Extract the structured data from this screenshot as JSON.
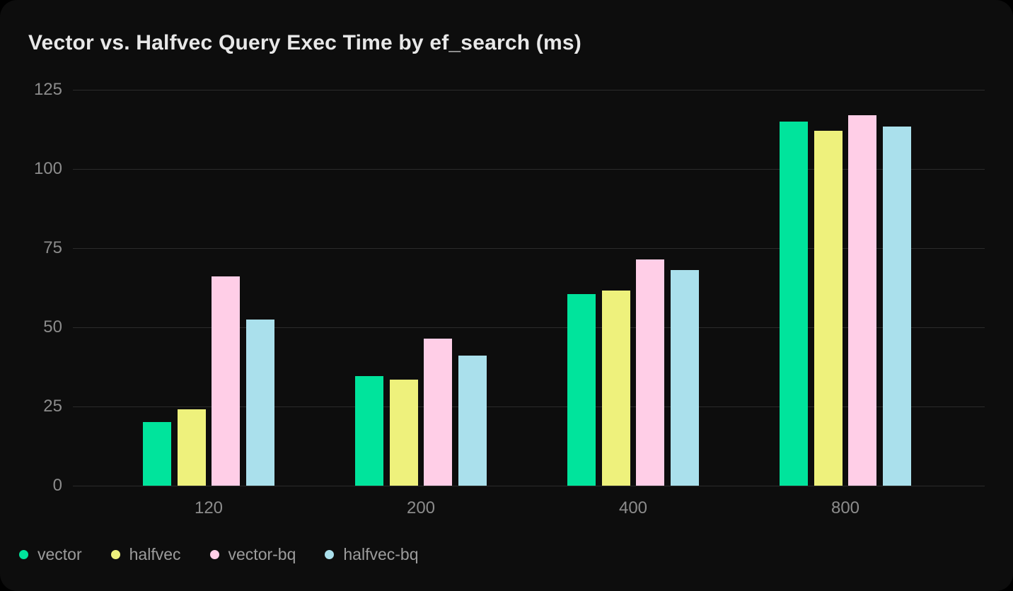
{
  "colors": {
    "page_background": "#000000",
    "card_background": "#0d0d0d",
    "grid_line": "#2b2b2b",
    "title_text": "#e8e8e8",
    "axis_text": "#8c8c8c",
    "legend_text": "#9c9c9c"
  },
  "chart_data": {
    "type": "bar",
    "title": "Vector vs. Halfvec Query Exec Time by ef_search (ms)",
    "xlabel": "",
    "ylabel": "",
    "categories": [
      "120",
      "200",
      "400",
      "800"
    ],
    "series": [
      {
        "name": "vector",
        "color": "#00e49c",
        "values": [
          20,
          34.5,
          60.5,
          115
        ]
      },
      {
        "name": "halfvec",
        "color": "#eef17c",
        "values": [
          24,
          33.5,
          61.5,
          112
        ]
      },
      {
        "name": "vector-bq",
        "color": "#ffcee7",
        "values": [
          66,
          46.5,
          71.5,
          117
        ]
      },
      {
        "name": "halfvec-bq",
        "color": "#aae0ec",
        "values": [
          52.5,
          41,
          68,
          113.5
        ]
      }
    ],
    "ylim": [
      0,
      125
    ],
    "yticks": [
      0,
      25,
      50,
      75,
      100,
      125
    ],
    "grid": "horizontal",
    "legend_position": "bottom-left"
  }
}
